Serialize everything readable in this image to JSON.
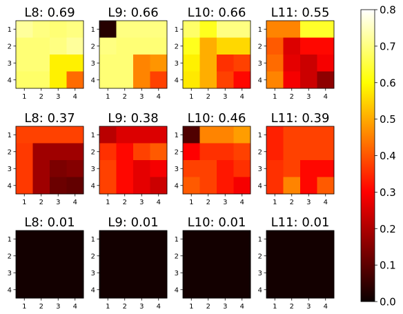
{
  "chart_data": {
    "type": "heatmap",
    "colormap": "hot",
    "vmin": 0.0,
    "vmax": 0.8,
    "x_ticks": [
      "1",
      "2",
      "3",
      "4"
    ],
    "y_ticks": [
      "1",
      "2",
      "3",
      "4"
    ],
    "colorbar": {
      "ticks": [
        0.8,
        0.7,
        0.6,
        0.5,
        0.4,
        0.3,
        0.2,
        0.1,
        0.0
      ],
      "tick_labels": [
        "0.8",
        "0.7",
        "0.6",
        "0.5",
        "0.4",
        "0.3",
        "0.2",
        "0.1",
        "0.0"
      ]
    },
    "panels": [
      {
        "title": "L8: 0.69",
        "values": [
          [
            0.72,
            0.7,
            0.69,
            0.7
          ],
          [
            0.69,
            0.69,
            0.7,
            0.72
          ],
          [
            0.69,
            0.69,
            0.58,
            0.58
          ],
          [
            0.68,
            0.68,
            0.58,
            0.42
          ]
        ]
      },
      {
        "title": "L9: 0.66",
        "values": [
          [
            0.03,
            0.7,
            0.7,
            0.7
          ],
          [
            0.7,
            0.69,
            0.69,
            0.69
          ],
          [
            0.69,
            0.69,
            0.45,
            0.47
          ],
          [
            0.69,
            0.69,
            0.45,
            0.37
          ]
        ]
      },
      {
        "title": "L10: 0.66",
        "values": [
          [
            0.68,
            0.62,
            0.7,
            0.7
          ],
          [
            0.62,
            0.5,
            0.55,
            0.55
          ],
          [
            0.58,
            0.5,
            0.35,
            0.37
          ],
          [
            0.57,
            0.5,
            0.37,
            0.3
          ]
        ]
      },
      {
        "title": "L11: 0.55",
        "values": [
          [
            0.45,
            0.45,
            0.63,
            0.63
          ],
          [
            0.4,
            0.24,
            0.3,
            0.3
          ],
          [
            0.42,
            0.25,
            0.22,
            0.27
          ],
          [
            0.45,
            0.27,
            0.22,
            0.15
          ]
        ]
      },
      {
        "title": "L8: 0.37",
        "values": [
          [
            0.37,
            0.37,
            0.37,
            0.37
          ],
          [
            0.36,
            0.17,
            0.17,
            0.17
          ],
          [
            0.36,
            0.17,
            0.13,
            0.14
          ],
          [
            0.36,
            0.17,
            0.11,
            0.1
          ]
        ]
      },
      {
        "title": "L9: 0.38",
        "values": [
          [
            0.2,
            0.24,
            0.24,
            0.24
          ],
          [
            0.35,
            0.3,
            0.37,
            0.4
          ],
          [
            0.37,
            0.3,
            0.25,
            0.27
          ],
          [
            0.37,
            0.3,
            0.25,
            0.22
          ]
        ]
      },
      {
        "title": "L10: 0.46",
        "values": [
          [
            0.08,
            0.45,
            0.45,
            0.48
          ],
          [
            0.28,
            0.35,
            0.35,
            0.37
          ],
          [
            0.37,
            0.37,
            0.32,
            0.35
          ],
          [
            0.4,
            0.37,
            0.32,
            0.27
          ]
        ]
      },
      {
        "title": "L11: 0.39",
        "values": [
          [
            0.33,
            0.37,
            0.37,
            0.37
          ],
          [
            0.33,
            0.37,
            0.37,
            0.37
          ],
          [
            0.35,
            0.37,
            0.3,
            0.3
          ],
          [
            0.35,
            0.45,
            0.3,
            0.4
          ]
        ]
      },
      {
        "title": "L8: 0.01",
        "values": [
          [
            0.01,
            0.01,
            0.01,
            0.01
          ],
          [
            0.01,
            0.01,
            0.01,
            0.01
          ],
          [
            0.01,
            0.01,
            0.01,
            0.01
          ],
          [
            0.01,
            0.01,
            0.01,
            0.01
          ]
        ]
      },
      {
        "title": "L9: 0.01",
        "values": [
          [
            0.01,
            0.01,
            0.01,
            0.01
          ],
          [
            0.01,
            0.01,
            0.01,
            0.01
          ],
          [
            0.01,
            0.01,
            0.01,
            0.01
          ],
          [
            0.01,
            0.01,
            0.01,
            0.01
          ]
        ]
      },
      {
        "title": "L10: 0.01",
        "values": [
          [
            0.01,
            0.01,
            0.01,
            0.01
          ],
          [
            0.01,
            0.01,
            0.01,
            0.01
          ],
          [
            0.01,
            0.01,
            0.01,
            0.01
          ],
          [
            0.01,
            0.01,
            0.01,
            0.01
          ]
        ]
      },
      {
        "title": "L11: 0.01",
        "values": [
          [
            0.01,
            0.01,
            0.01,
            0.01
          ],
          [
            0.01,
            0.01,
            0.01,
            0.01
          ],
          [
            0.01,
            0.01,
            0.01,
            0.01
          ],
          [
            0.01,
            0.01,
            0.01,
            0.01
          ]
        ]
      }
    ]
  }
}
